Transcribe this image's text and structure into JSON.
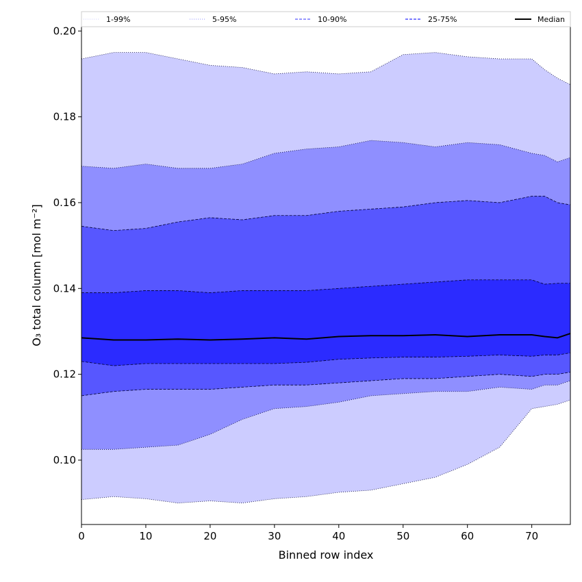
{
  "chart_data": {
    "type": "area",
    "title": "",
    "xlabel": "Binned row index",
    "ylabel": "O₃ total column [mol m⁻²]",
    "xlim": [
      0,
      76
    ],
    "ylim": [
      0.085,
      0.201
    ],
    "xticks": [
      0,
      10,
      20,
      30,
      40,
      50,
      60,
      70
    ],
    "yticks": [
      0.1,
      0.12,
      0.14,
      0.16,
      0.18,
      0.2
    ],
    "ytick_labels": [
      "0.10",
      "0.12",
      "0.14",
      "0.16",
      "0.18",
      "0.20"
    ],
    "x": [
      0,
      5,
      10,
      15,
      20,
      25,
      30,
      35,
      40,
      45,
      50,
      55,
      60,
      65,
      70,
      72,
      74,
      76
    ],
    "bands": [
      {
        "name": "1-99%",
        "fill": "#ccccff",
        "line_style": "dotted",
        "lower": [
          0.0908,
          0.0915,
          0.091,
          0.09,
          0.0905,
          0.09,
          0.091,
          0.0915,
          0.0925,
          0.093,
          0.0945,
          0.096,
          0.099,
          0.103,
          0.112,
          0.1125,
          0.113,
          0.114
        ],
        "upper": [
          0.1935,
          0.195,
          0.195,
          0.1935,
          0.192,
          0.1915,
          0.19,
          0.1905,
          0.19,
          0.1905,
          0.1945,
          0.195,
          0.194,
          0.1935,
          0.1935,
          0.191,
          0.189,
          0.1875
        ]
      },
      {
        "name": "5-95%",
        "fill": "#8f8fff",
        "line_style": "dotted",
        "lower": [
          0.1025,
          0.1025,
          0.103,
          0.1035,
          0.106,
          0.1095,
          0.112,
          0.1125,
          0.1135,
          0.115,
          0.1155,
          0.116,
          0.116,
          0.117,
          0.1165,
          0.1175,
          0.1175,
          0.1185
        ],
        "upper": [
          0.1685,
          0.168,
          0.169,
          0.168,
          0.168,
          0.169,
          0.1715,
          0.1725,
          0.173,
          0.1745,
          0.174,
          0.173,
          0.174,
          0.1735,
          0.1715,
          0.171,
          0.1695,
          0.1705
        ]
      },
      {
        "name": "10-90%",
        "fill": "#5757ff",
        "line_style": "dashed",
        "lower": [
          0.115,
          0.116,
          0.1165,
          0.1165,
          0.1165,
          0.117,
          0.1175,
          0.1175,
          0.118,
          0.1185,
          0.119,
          0.119,
          0.1195,
          0.12,
          0.1195,
          0.12,
          0.12,
          0.1205
        ],
        "upper": [
          0.1545,
          0.1535,
          0.154,
          0.1555,
          0.1565,
          0.156,
          0.157,
          0.157,
          0.158,
          0.1585,
          0.159,
          0.16,
          0.1605,
          0.16,
          0.1615,
          0.1615,
          0.16,
          0.1595
        ]
      },
      {
        "name": "25-75%",
        "fill": "#2b2bff",
        "line_style": "dashed",
        "lower": [
          0.123,
          0.122,
          0.1225,
          0.1225,
          0.1225,
          0.1225,
          0.1225,
          0.1228,
          0.1235,
          0.1238,
          0.124,
          0.124,
          0.1242,
          0.1245,
          0.1242,
          0.1245,
          0.1245,
          0.125
        ],
        "upper": [
          0.139,
          0.139,
          0.1395,
          0.1395,
          0.139,
          0.1395,
          0.1395,
          0.1395,
          0.14,
          0.1405,
          0.141,
          0.1415,
          0.142,
          0.142,
          0.142,
          0.141,
          0.1412,
          0.1412
        ]
      }
    ],
    "median": {
      "name": "Median",
      "color": "#000000",
      "values": [
        0.1285,
        0.128,
        0.128,
        0.1282,
        0.128,
        0.1282,
        0.1285,
        0.1282,
        0.1288,
        0.129,
        0.129,
        0.1292,
        0.1288,
        0.1292,
        0.1292,
        0.1288,
        0.1285,
        0.1295
      ]
    },
    "legend": {
      "placement": "top",
      "entries": [
        "1-99%",
        "5-95%",
        "10-90%",
        "25-75%",
        "Median"
      ]
    }
  }
}
